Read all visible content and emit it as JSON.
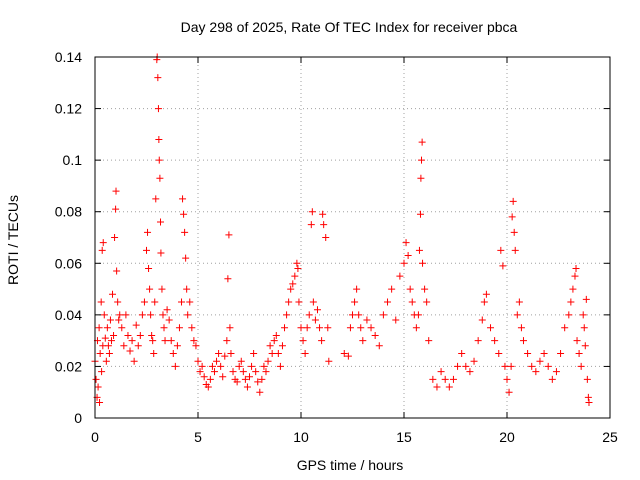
{
  "chart_data": {
    "type": "scatter",
    "title": "Day 298 of 2025, Rate Of TEC Index for receiver pbca",
    "xlabel": "GPS time / hours",
    "ylabel": "ROTI / TECUs",
    "xlim": [
      0,
      25
    ],
    "ylim": [
      0,
      0.14
    ],
    "xticks": [
      0,
      5,
      10,
      15,
      20,
      25
    ],
    "xtick_labels": [
      "0",
      "5",
      "10",
      "15",
      "20",
      "25"
    ],
    "yticks": [
      0,
      0.02,
      0.04,
      0.06,
      0.08,
      0.1,
      0.12,
      0.14
    ],
    "ytick_labels": [
      "0",
      "0.02",
      "0.04",
      "0.06",
      "0.08",
      "0.1",
      "0.12",
      "0.14"
    ],
    "grid": true,
    "marker": "plus",
    "color": "#ff0000",
    "series": [
      {
        "name": "ROTI",
        "points": [
          [
            0.0,
            0.022
          ],
          [
            0.05,
            0.015
          ],
          [
            0.1,
            0.008
          ],
          [
            0.12,
            0.03
          ],
          [
            0.15,
            0.012
          ],
          [
            0.2,
            0.035
          ],
          [
            0.22,
            0.006
          ],
          [
            0.25,
            0.025
          ],
          [
            0.3,
            0.045
          ],
          [
            0.32,
            0.018
          ],
          [
            0.35,
            0.065
          ],
          [
            0.38,
            0.028
          ],
          [
            0.4,
            0.068
          ],
          [
            0.45,
            0.04
          ],
          [
            0.5,
            0.031
          ],
          [
            0.55,
            0.022
          ],
          [
            0.6,
            0.035
          ],
          [
            0.65,
            0.028
          ],
          [
            0.7,
            0.025
          ],
          [
            0.75,
            0.038
          ],
          [
            0.8,
            0.03
          ],
          [
            0.85,
            0.048
          ],
          [
            0.9,
            0.032
          ],
          [
            0.95,
            0.07
          ],
          [
            1.0,
            0.081
          ],
          [
            1.02,
            0.088
          ],
          [
            1.05,
            0.057
          ],
          [
            1.1,
            0.045
          ],
          [
            1.15,
            0.038
          ],
          [
            1.2,
            0.04
          ],
          [
            1.3,
            0.035
          ],
          [
            1.4,
            0.028
          ],
          [
            1.5,
            0.04
          ],
          [
            1.6,
            0.032
          ],
          [
            1.7,
            0.026
          ],
          [
            1.8,
            0.03
          ],
          [
            1.9,
            0.022
          ],
          [
            2.0,
            0.036
          ],
          [
            2.1,
            0.028
          ],
          [
            2.2,
            0.032
          ],
          [
            2.3,
            0.04
          ],
          [
            2.4,
            0.045
          ],
          [
            2.5,
            0.065
          ],
          [
            2.55,
            0.072
          ],
          [
            2.6,
            0.058
          ],
          [
            2.65,
            0.05
          ],
          [
            2.7,
            0.04
          ],
          [
            2.75,
            0.032
          ],
          [
            2.8,
            0.03
          ],
          [
            2.85,
            0.025
          ],
          [
            2.9,
            0.045
          ],
          [
            2.95,
            0.085
          ],
          [
            3.0,
            0.139
          ],
          [
            3.02,
            0.14
          ],
          [
            3.05,
            0.132
          ],
          [
            3.08,
            0.12
          ],
          [
            3.1,
            0.108
          ],
          [
            3.12,
            0.1
          ],
          [
            3.15,
            0.093
          ],
          [
            3.18,
            0.076
          ],
          [
            3.2,
            0.064
          ],
          [
            3.25,
            0.05
          ],
          [
            3.3,
            0.04
          ],
          [
            3.35,
            0.035
          ],
          [
            3.4,
            0.03
          ],
          [
            3.5,
            0.042
          ],
          [
            3.6,
            0.038
          ],
          [
            3.7,
            0.03
          ],
          [
            3.8,
            0.025
          ],
          [
            3.9,
            0.02
          ],
          [
            4.0,
            0.028
          ],
          [
            4.1,
            0.035
          ],
          [
            4.2,
            0.045
          ],
          [
            4.25,
            0.085
          ],
          [
            4.3,
            0.079
          ],
          [
            4.35,
            0.072
          ],
          [
            4.4,
            0.062
          ],
          [
            4.45,
            0.05
          ],
          [
            4.5,
            0.04
          ],
          [
            4.6,
            0.045
          ],
          [
            4.7,
            0.035
          ],
          [
            4.8,
            0.03
          ],
          [
            4.9,
            0.028
          ],
          [
            5.0,
            0.022
          ],
          [
            5.1,
            0.018
          ],
          [
            5.2,
            0.02
          ],
          [
            5.3,
            0.016
          ],
          [
            5.4,
            0.013
          ],
          [
            5.5,
            0.012
          ],
          [
            5.6,
            0.015
          ],
          [
            5.7,
            0.02
          ],
          [
            5.8,
            0.018
          ],
          [
            5.9,
            0.022
          ],
          [
            6.0,
            0.025
          ],
          [
            6.1,
            0.02
          ],
          [
            6.2,
            0.016
          ],
          [
            6.3,
            0.024
          ],
          [
            6.4,
            0.03
          ],
          [
            6.45,
            0.054
          ],
          [
            6.5,
            0.071
          ],
          [
            6.55,
            0.035
          ],
          [
            6.6,
            0.025
          ],
          [
            6.7,
            0.018
          ],
          [
            6.8,
            0.015
          ],
          [
            6.9,
            0.014
          ],
          [
            7.0,
            0.02
          ],
          [
            7.1,
            0.022
          ],
          [
            7.2,
            0.018
          ],
          [
            7.3,
            0.015
          ],
          [
            7.4,
            0.012
          ],
          [
            7.5,
            0.016
          ],
          [
            7.6,
            0.02
          ],
          [
            7.7,
            0.025
          ],
          [
            7.8,
            0.018
          ],
          [
            7.9,
            0.014
          ],
          [
            8.0,
            0.01
          ],
          [
            8.1,
            0.015
          ],
          [
            8.2,
            0.02
          ],
          [
            8.3,
            0.018
          ],
          [
            8.4,
            0.022
          ],
          [
            8.5,
            0.028
          ],
          [
            8.6,
            0.025
          ],
          [
            8.7,
            0.03
          ],
          [
            8.8,
            0.032
          ],
          [
            8.9,
            0.025
          ],
          [
            9.0,
            0.02
          ],
          [
            9.1,
            0.028
          ],
          [
            9.2,
            0.035
          ],
          [
            9.3,
            0.04
          ],
          [
            9.4,
            0.045
          ],
          [
            9.5,
            0.05
          ],
          [
            9.6,
            0.052
          ],
          [
            9.7,
            0.055
          ],
          [
            9.8,
            0.06
          ],
          [
            9.85,
            0.058
          ],
          [
            9.9,
            0.045
          ],
          [
            10.0,
            0.035
          ],
          [
            10.1,
            0.03
          ],
          [
            10.2,
            0.025
          ],
          [
            10.3,
            0.035
          ],
          [
            10.4,
            0.04
          ],
          [
            10.5,
            0.075
          ],
          [
            10.55,
            0.08
          ],
          [
            10.6,
            0.045
          ],
          [
            10.7,
            0.038
          ],
          [
            10.8,
            0.042
          ],
          [
            10.9,
            0.035
          ],
          [
            11.0,
            0.03
          ],
          [
            11.05,
            0.079
          ],
          [
            11.1,
            0.075
          ],
          [
            11.2,
            0.07
          ],
          [
            11.3,
            0.035
          ],
          [
            11.35,
            0.022
          ],
          [
            12.1,
            0.025
          ],
          [
            12.3,
            0.024
          ],
          [
            12.4,
            0.035
          ],
          [
            12.5,
            0.04
          ],
          [
            12.6,
            0.045
          ],
          [
            12.7,
            0.05
          ],
          [
            12.8,
            0.04
          ],
          [
            12.9,
            0.035
          ],
          [
            13.0,
            0.03
          ],
          [
            13.2,
            0.038
          ],
          [
            13.4,
            0.035
          ],
          [
            13.6,
            0.032
          ],
          [
            13.8,
            0.028
          ],
          [
            14.0,
            0.04
          ],
          [
            14.2,
            0.045
          ],
          [
            14.4,
            0.05
          ],
          [
            14.6,
            0.038
          ],
          [
            14.8,
            0.055
          ],
          [
            15.0,
            0.06
          ],
          [
            15.1,
            0.068
          ],
          [
            15.2,
            0.063
          ],
          [
            15.3,
            0.05
          ],
          [
            15.4,
            0.045
          ],
          [
            15.5,
            0.04
          ],
          [
            15.6,
            0.035
          ],
          [
            15.7,
            0.04
          ],
          [
            15.75,
            0.065
          ],
          [
            15.8,
            0.079
          ],
          [
            15.82,
            0.093
          ],
          [
            15.85,
            0.1
          ],
          [
            15.88,
            0.107
          ],
          [
            15.9,
            0.06
          ],
          [
            16.0,
            0.05
          ],
          [
            16.1,
            0.045
          ],
          [
            16.2,
            0.03
          ],
          [
            16.4,
            0.015
          ],
          [
            16.6,
            0.012
          ],
          [
            16.8,
            0.018
          ],
          [
            17.0,
            0.015
          ],
          [
            17.2,
            0.012
          ],
          [
            17.4,
            0.015
          ],
          [
            17.6,
            0.02
          ],
          [
            17.8,
            0.025
          ],
          [
            18.0,
            0.02
          ],
          [
            18.2,
            0.018
          ],
          [
            18.4,
            0.022
          ],
          [
            18.6,
            0.03
          ],
          [
            18.8,
            0.038
          ],
          [
            18.9,
            0.045
          ],
          [
            19.0,
            0.048
          ],
          [
            19.2,
            0.035
          ],
          [
            19.4,
            0.03
          ],
          [
            19.6,
            0.025
          ],
          [
            19.7,
            0.065
          ],
          [
            19.8,
            0.059
          ],
          [
            19.9,
            0.02
          ],
          [
            20.0,
            0.015
          ],
          [
            20.1,
            0.01
          ],
          [
            20.2,
            0.02
          ],
          [
            20.25,
            0.078
          ],
          [
            20.3,
            0.084
          ],
          [
            20.35,
            0.072
          ],
          [
            20.4,
            0.065
          ],
          [
            20.5,
            0.04
          ],
          [
            20.6,
            0.045
          ],
          [
            20.7,
            0.035
          ],
          [
            20.8,
            0.03
          ],
          [
            21.0,
            0.025
          ],
          [
            21.2,
            0.02
          ],
          [
            21.4,
            0.018
          ],
          [
            21.6,
            0.022
          ],
          [
            21.8,
            0.025
          ],
          [
            22.0,
            0.02
          ],
          [
            22.2,
            0.015
          ],
          [
            22.4,
            0.018
          ],
          [
            22.6,
            0.025
          ],
          [
            22.8,
            0.035
          ],
          [
            23.0,
            0.04
          ],
          [
            23.1,
            0.045
          ],
          [
            23.2,
            0.05
          ],
          [
            23.3,
            0.055
          ],
          [
            23.35,
            0.058
          ],
          [
            23.4,
            0.03
          ],
          [
            23.5,
            0.025
          ],
          [
            23.6,
            0.02
          ],
          [
            23.7,
            0.04
          ],
          [
            23.75,
            0.035
          ],
          [
            23.8,
            0.028
          ],
          [
            23.85,
            0.046
          ],
          [
            23.9,
            0.015
          ],
          [
            23.95,
            0.008
          ],
          [
            23.98,
            0.006
          ]
        ]
      }
    ]
  }
}
